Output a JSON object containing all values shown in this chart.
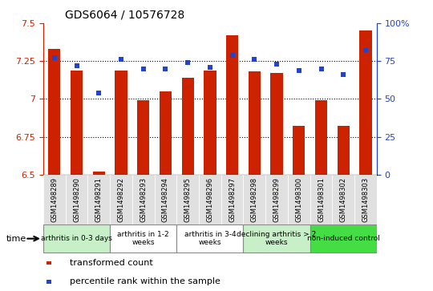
{
  "title": "GDS6064 / 10576728",
  "samples": [
    "GSM1498289",
    "GSM1498290",
    "GSM1498291",
    "GSM1498292",
    "GSM1498293",
    "GSM1498294",
    "GSM1498295",
    "GSM1498296",
    "GSM1498297",
    "GSM1498298",
    "GSM1498299",
    "GSM1498300",
    "GSM1498301",
    "GSM1498302",
    "GSM1498303"
  ],
  "transformed_count": [
    7.33,
    7.19,
    6.52,
    7.19,
    6.99,
    7.05,
    7.14,
    7.19,
    7.42,
    7.18,
    7.17,
    6.82,
    6.99,
    6.82,
    7.45
  ],
  "percentile_rank": [
    77,
    72,
    54,
    76,
    70,
    70,
    74,
    71,
    79,
    76,
    73,
    69,
    70,
    66,
    82
  ],
  "groups": [
    {
      "label": "arthritis in 0-3 days",
      "start": 0,
      "end": 3,
      "color": "#c8f0c8"
    },
    {
      "label": "arthritis in 1-2\nweeks",
      "start": 3,
      "end": 6,
      "color": "#ffffff"
    },
    {
      "label": "arthritis in 3-4\nweeks",
      "start": 6,
      "end": 9,
      "color": "#ffffff"
    },
    {
      "label": "declining arthritis > 2\nweeks",
      "start": 9,
      "end": 12,
      "color": "#c8f0c8"
    },
    {
      "label": "non-induced control",
      "start": 12,
      "end": 15,
      "color": "#44dd44"
    }
  ],
  "ylim_left": [
    6.5,
    7.5
  ],
  "ylim_right": [
    0,
    100
  ],
  "bar_color": "#cc2200",
  "dot_color": "#2244cc",
  "tick_color_left": "#cc2200",
  "tick_color_right": "#2244cc",
  "grid_values": [
    6.75,
    7.0,
    7.25
  ],
  "right_ticks": [
    0,
    25,
    50,
    75,
    100
  ],
  "right_tick_labels": [
    "0",
    "25",
    "50",
    "75",
    "100%"
  ],
  "left_yticks": [
    6.5,
    6.75,
    7.0,
    7.25,
    7.5
  ],
  "left_ytick_labels": [
    "6.5",
    "6.75",
    "7",
    "7.25",
    "7.5"
  ]
}
